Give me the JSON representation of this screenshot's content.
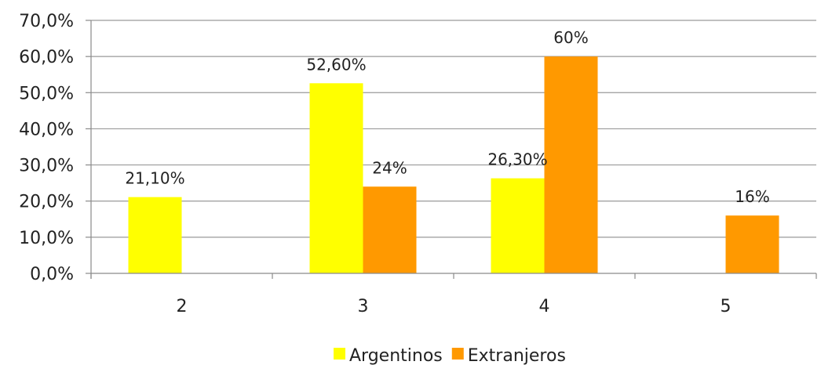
{
  "chart_data": {
    "type": "bar",
    "categories": [
      "2",
      "3",
      "4",
      "5"
    ],
    "series": [
      {
        "name": "Argentinos",
        "color": "#ffff00",
        "values": [
          21.1,
          52.6,
          26.3,
          null
        ],
        "labels": [
          "21,10%",
          "52,60%",
          "26,30%",
          ""
        ]
      },
      {
        "name": "Extranjeros",
        "color": "#ff9900",
        "values": [
          null,
          24,
          60,
          16
        ],
        "labels": [
          "",
          "24%",
          "60%",
          "16%"
        ]
      }
    ],
    "ylim": [
      0,
      70
    ],
    "yticks": [
      0,
      10,
      20,
      30,
      40,
      50,
      60,
      70
    ],
    "ytick_labels": [
      "0,0%",
      "10,0%",
      "20,0%",
      "30,0%",
      "40,0%",
      "50,0%",
      "60,0%",
      "70,0%"
    ],
    "grid": true,
    "legend_position": "bottom",
    "title": "",
    "xlabel": "",
    "ylabel": ""
  }
}
